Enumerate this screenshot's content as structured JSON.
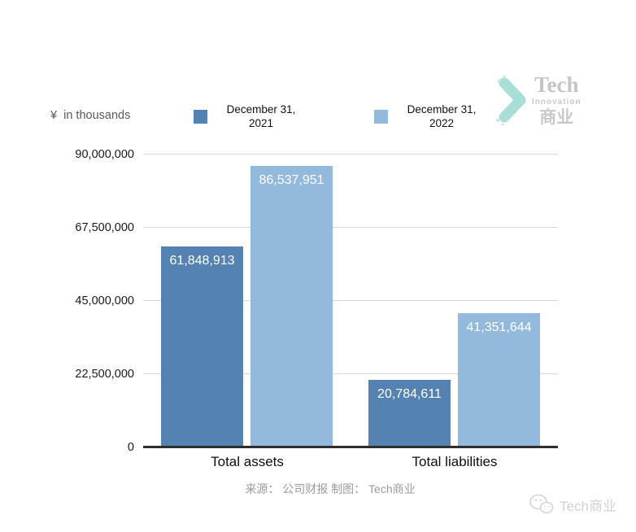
{
  "header": {
    "units_label": "¥  in thousands"
  },
  "chart_data": {
    "type": "bar",
    "title": "",
    "unit_note": "¥ in thousands",
    "categories": [
      "Total assets",
      "Total liabilities"
    ],
    "series": [
      {
        "name": "December 31, 2021",
        "color": "#5482B3",
        "values": [
          61848913,
          20784611
        ]
      },
      {
        "name": "December 31, 2022",
        "color": "#93BADD",
        "values": [
          86537951,
          41351644
        ]
      }
    ],
    "value_labels": [
      [
        "61,848,913",
        "20,784,611"
      ],
      [
        "86,537,951",
        "41,351,644"
      ]
    ],
    "ylim": [
      0,
      90000000
    ],
    "yticks": [
      "0",
      "22,500,000",
      "45,000,000",
      "67,500,000",
      "90,000,000"
    ],
    "grid": true,
    "legend_position": "top",
    "gridline_color": "#d9d9d9",
    "axis_color": "#2e2e2e"
  },
  "brand_logo": {
    "line1": "Tech",
    "line2": "Innovation",
    "line3": "商业",
    "arrow_color": "#A9DED7",
    "text_color": "#c9c7c5"
  },
  "footer": {
    "source_caption": "来源： 公司财报 制图： Tech商业"
  },
  "watermark": {
    "text": "Tech商业"
  }
}
